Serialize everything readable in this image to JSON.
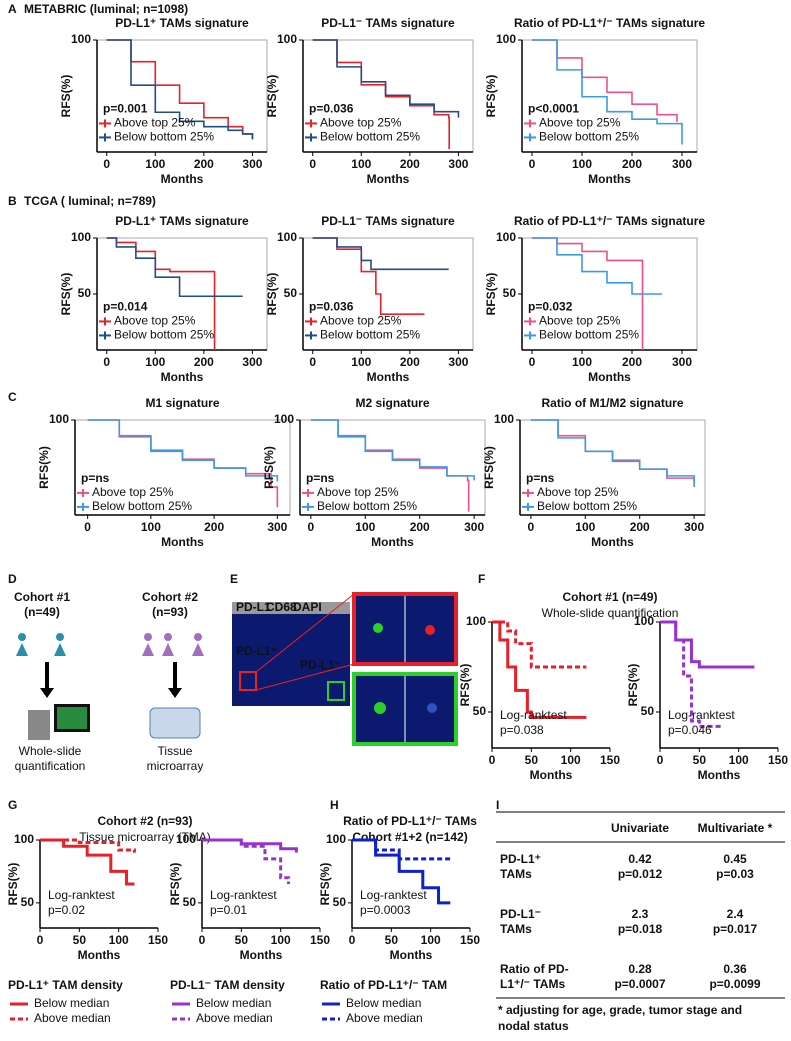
{
  "panel_labels": [
    "A",
    "B",
    "C",
    "D",
    "E",
    "F",
    "G",
    "H",
    "I"
  ],
  "headers": {
    "A": "METABRIC (luminal; n=1098)",
    "B": "TCGA ( luminal; n=789)",
    "F": [
      "Cohort #1 (n=49)",
      "Whole-slide quantification"
    ],
    "G": [
      "Cohort #2 (n=93)",
      "Tissue microarray (TMA)"
    ],
    "H": [
      "Ratio of PD-L1⁺/⁻ TAMs",
      "Cohort #1+2 (n=142)"
    ]
  },
  "chart_data": [
    {
      "type": "line",
      "title": "PD-L1⁺ TAMs signature",
      "title_color": "#e8202a",
      "x_label": "Months",
      "y_label": "RFS(%)",
      "xlim": [
        -20,
        330
      ],
      "xticks": [
        0,
        100,
        200,
        300
      ],
      "ylim": [
        38,
        100
      ],
      "yticks": [
        100
      ],
      "annotations": [
        "p=0.001"
      ],
      "series": [
        {
          "name": "Above top 25%",
          "color": "#e8202a",
          "x": [
            0,
            50,
            100,
            150,
            200,
            250,
            280,
            300
          ],
          "values": [
            100,
            88,
            75,
            65,
            57,
            52,
            48,
            45
          ]
        },
        {
          "name": "Below bottom 25%",
          "color": "#1f4e8c",
          "x": [
            0,
            50,
            100,
            150,
            200,
            250,
            280,
            300
          ],
          "values": [
            100,
            75,
            60,
            55,
            52,
            50,
            48,
            45
          ]
        }
      ]
    },
    {
      "type": "line",
      "title": "PD-L1⁻ TAMs signature",
      "title_color": "#c03ec8",
      "x_label": "Months",
      "y_label": "RFS(%)",
      "xlim": [
        -20,
        330
      ],
      "xticks": [
        0,
        100,
        200,
        300
      ],
      "ylim": [
        25,
        100
      ],
      "yticks": [
        100
      ],
      "annotations": [
        "p=0.036"
      ],
      "series": [
        {
          "name": "Above top 25%",
          "color": "#e8202a",
          "x": [
            0,
            50,
            100,
            150,
            200,
            250,
            280,
            281
          ],
          "values": [
            100,
            85,
            70,
            62,
            56,
            50,
            48,
            27
          ]
        },
        {
          "name": "Below bottom 25%",
          "color": "#1f4e8c",
          "x": [
            0,
            50,
            100,
            150,
            200,
            250,
            300
          ],
          "values": [
            100,
            82,
            72,
            63,
            57,
            52,
            48
          ]
        }
      ]
    },
    {
      "type": "line",
      "title": "Ratio of PD-L1⁺/⁻ TAMs signature",
      "title_color": "#1d2ff0",
      "x_label": "Months",
      "y_label": "RFS(%)",
      "xlim": [
        -20,
        330
      ],
      "xticks": [
        0,
        100,
        200,
        300
      ],
      "ylim": [
        25,
        100
      ],
      "yticks": [
        100
      ],
      "annotations": [
        "p<0.0001"
      ],
      "series": [
        {
          "name": "Above top 25%",
          "color": "#f0508a",
          "x": [
            0,
            50,
            100,
            150,
            200,
            250,
            290
          ],
          "values": [
            100,
            88,
            75,
            65,
            57,
            50,
            45
          ]
        },
        {
          "name": "Below bottom 25%",
          "color": "#3a9be8",
          "x": [
            0,
            50,
            100,
            150,
            200,
            250,
            290,
            300
          ],
          "values": [
            100,
            80,
            62,
            52,
            47,
            44,
            44,
            30
          ]
        }
      ]
    },
    {
      "type": "line",
      "title": "PD-L1⁺ TAMs signature",
      "title_color": "#e8202a",
      "x_label": "Months",
      "y_label": "RFS(%)",
      "xlim": [
        -20,
        330
      ],
      "xticks": [
        0,
        100,
        200,
        300
      ],
      "ylim": [
        0,
        100
      ],
      "yticks": [
        50,
        100
      ],
      "annotations": [
        "p=0.014"
      ],
      "series": [
        {
          "name": "Above top 25%",
          "color": "#e8202a",
          "x": [
            0,
            20,
            60,
            100,
            130,
            220,
            222
          ],
          "values": [
            100,
            96,
            88,
            72,
            70,
            70,
            0
          ]
        },
        {
          "name": "Below bottom 25%",
          "color": "#1f4e8c",
          "x": [
            0,
            20,
            60,
            100,
            150,
            200,
            280
          ],
          "values": [
            100,
            92,
            82,
            65,
            48,
            48,
            48
          ]
        }
      ]
    },
    {
      "type": "line",
      "title": "PD-L1⁻ TAMs signature",
      "title_color": "#c03ec8",
      "x_label": "Months",
      "y_label": "RFS(%)",
      "xlim": [
        -20,
        330
      ],
      "xticks": [
        0,
        100,
        200,
        300
      ],
      "ylim": [
        0,
        100
      ],
      "yticks": [
        50,
        100
      ],
      "annotations": [
        "p=0.036"
      ],
      "series": [
        {
          "name": "Above top 25%",
          "color": "#e8202a",
          "x": [
            0,
            50,
            100,
            130,
            140,
            230
          ],
          "values": [
            100,
            90,
            70,
            50,
            32,
            32
          ]
        },
        {
          "name": "Below bottom 25%",
          "color": "#1f4e8c",
          "x": [
            0,
            50,
            100,
            120,
            200,
            280
          ],
          "values": [
            100,
            92,
            80,
            72,
            72,
            72
          ]
        }
      ]
    },
    {
      "type": "line",
      "title": "Ratio of PD-L1⁺/⁻ TAMs signature",
      "title_color": "#1d2ff0",
      "x_label": "Months",
      "y_label": "RFS(%)",
      "xlim": [
        -20,
        330
      ],
      "xticks": [
        0,
        100,
        200,
        300
      ],
      "ylim": [
        0,
        100
      ],
      "yticks": [
        50,
        100
      ],
      "annotations": [
        "p=0.032"
      ],
      "series": [
        {
          "name": "Above top 25%",
          "color": "#f0508a",
          "x": [
            0,
            50,
            100,
            150,
            200,
            220,
            221
          ],
          "values": [
            100,
            95,
            88,
            80,
            80,
            80,
            0
          ]
        },
        {
          "name": "Below bottom 25%",
          "color": "#3a9be8",
          "x": [
            0,
            50,
            100,
            150,
            200,
            260
          ],
          "values": [
            100,
            85,
            70,
            60,
            50,
            50
          ]
        }
      ]
    },
    {
      "type": "line",
      "title": "M1 signature",
      "title_color": "#111111",
      "x_label": "Months",
      "y_label": "RFS(%)",
      "xlim": [
        -20,
        320
      ],
      "xticks": [
        0,
        100,
        200,
        300
      ],
      "ylim": [
        15,
        100
      ],
      "yticks": [
        100
      ],
      "annotations": [
        "p=ns"
      ],
      "series": [
        {
          "name": "Above top 25%",
          "color": "#f0508a",
          "x": [
            0,
            50,
            100,
            150,
            200,
            250,
            290,
            300
          ],
          "values": [
            100,
            85,
            72,
            65,
            57,
            52,
            40,
            22
          ]
        },
        {
          "name": "Below bottom 25%",
          "color": "#3a9be8",
          "x": [
            0,
            50,
            100,
            150,
            200,
            250,
            300
          ],
          "values": [
            100,
            86,
            73,
            64,
            57,
            50,
            45
          ]
        }
      ]
    },
    {
      "type": "line",
      "title": "M2 signature",
      "title_color": "#111111",
      "x_label": "Months",
      "y_label": "RFS(%)",
      "xlim": [
        -20,
        320
      ],
      "xticks": [
        0,
        100,
        200,
        300
      ],
      "ylim": [
        15,
        100
      ],
      "yticks": [
        100
      ],
      "annotations": [
        "p=ns"
      ],
      "series": [
        {
          "name": "Above top 25%",
          "color": "#f0508a",
          "x": [
            0,
            50,
            100,
            150,
            200,
            250,
            288,
            290
          ],
          "values": [
            100,
            86,
            73,
            65,
            57,
            50,
            46,
            18
          ]
        },
        {
          "name": "Below bottom 25%",
          "color": "#3a9be8",
          "x": [
            0,
            50,
            100,
            150,
            200,
            250,
            300
          ],
          "values": [
            100,
            85,
            72,
            64,
            58,
            50,
            46
          ]
        }
      ]
    },
    {
      "type": "line",
      "title": "Ratio of M1/M2 signature",
      "title_color": "#111111",
      "x_label": "Months",
      "y_label": "RFS(%)",
      "xlim": [
        -20,
        320
      ],
      "xticks": [
        0,
        100,
        200,
        300
      ],
      "ylim": [
        15,
        100
      ],
      "yticks": [
        100
      ],
      "annotations": [
        "p=ns"
      ],
      "series": [
        {
          "name": "Above top 25%",
          "color": "#f0508a",
          "x": [
            0,
            50,
            100,
            150,
            200,
            250,
            300
          ],
          "values": [
            100,
            86,
            72,
            64,
            56,
            48,
            44
          ]
        },
        {
          "name": "Below bottom 25%",
          "color": "#3a9be8",
          "x": [
            0,
            50,
            100,
            150,
            200,
            250,
            300
          ],
          "values": [
            100,
            84,
            72,
            63,
            56,
            50,
            40
          ]
        }
      ]
    },
    {
      "type": "line",
      "x_label": "Months",
      "y_label": "RFS(%)",
      "xlim": [
        0,
        150
      ],
      "xticks": [
        0,
        50,
        100,
        150
      ],
      "ylim": [
        30,
        100
      ],
      "yticks": [
        50,
        100
      ],
      "annotations": [
        "Log-ranktest",
        "p=0.038"
      ],
      "series": [
        {
          "color": "#e8202a",
          "dash": false,
          "x": [
            0,
            10,
            20,
            30,
            45,
            50,
            120
          ],
          "values": [
            100,
            90,
            75,
            62,
            50,
            47,
            47
          ]
        },
        {
          "color": "#e8202a",
          "dash": true,
          "x": [
            0,
            20,
            30,
            50,
            120
          ],
          "values": [
            100,
            95,
            88,
            75,
            75
          ]
        }
      ]
    },
    {
      "type": "line",
      "x_label": "Months",
      "y_label": "RFS(%)",
      "xlim": [
        0,
        150
      ],
      "xticks": [
        0,
        50,
        100,
        150
      ],
      "ylim": [
        30,
        100
      ],
      "yticks": [
        50,
        100
      ],
      "annotations": [
        "Log-ranktest",
        "p=0.046"
      ],
      "series": [
        {
          "color": "#9b30d0",
          "dash": false,
          "x": [
            0,
            20,
            40,
            50,
            120
          ],
          "values": [
            100,
            90,
            78,
            75,
            75
          ]
        },
        {
          "color": "#9b30d0",
          "dash": true,
          "x": [
            0,
            20,
            30,
            40,
            50,
            80
          ],
          "values": [
            100,
            90,
            70,
            45,
            42,
            42
          ]
        }
      ]
    },
    {
      "type": "line",
      "x_label": "Months",
      "y_label": "RFS(%)",
      "xlim": [
        0,
        150
      ],
      "xticks": [
        0,
        50,
        100,
        150
      ],
      "ylim": [
        30,
        100
      ],
      "yticks": [
        50,
        100
      ],
      "annotations": [
        "Log-ranktest",
        "p=0.02"
      ],
      "legend_title": "PD-L1⁺ TAM density",
      "legend_title_color": "#e8202a",
      "series": [
        {
          "name": "Below median",
          "color": "#e8202a",
          "dash": false,
          "x": [
            0,
            30,
            60,
            90,
            110,
            120
          ],
          "values": [
            100,
            95,
            88,
            75,
            65,
            65
          ]
        },
        {
          "name": "Above median",
          "color": "#e8202a",
          "dash": true,
          "x": [
            0,
            50,
            100,
            120
          ],
          "values": [
            100,
            98,
            92,
            90
          ]
        }
      ]
    },
    {
      "type": "line",
      "x_label": "Months",
      "y_label": "RFS(%)",
      "xlim": [
        0,
        150
      ],
      "xticks": [
        0,
        50,
        100,
        150
      ],
      "ylim": [
        30,
        100
      ],
      "yticks": [
        50,
        100
      ],
      "annotations": [
        "Log-ranktest",
        "p=0.01"
      ],
      "legend_title": "PD-L1⁻ TAM density",
      "legend_title_color": "#9b30d0",
      "series": [
        {
          "name": "Below median",
          "color": "#9b30d0",
          "dash": false,
          "x": [
            0,
            50,
            100,
            120
          ],
          "values": [
            100,
            97,
            93,
            90
          ]
        },
        {
          "name": "Above median",
          "color": "#9b30d0",
          "dash": true,
          "x": [
            0,
            50,
            80,
            100,
            110
          ],
          "values": [
            100,
            95,
            85,
            70,
            65
          ]
        }
      ]
    },
    {
      "type": "line",
      "x_label": "Months",
      "y_label": "RFS(%)",
      "xlim": [
        0,
        150
      ],
      "xticks": [
        0,
        50,
        100,
        150
      ],
      "ylim": [
        30,
        100
      ],
      "yticks": [
        50,
        100
      ],
      "annotations": [
        "Log-ranktest",
        "p=0.0003"
      ],
      "legend_title": "Ratio of PD-L1⁺/⁻ TAM",
      "legend_title_color": "#1020d0",
      "series": [
        {
          "name": "Below median",
          "color": "#1020d0",
          "dash": false,
          "x": [
            0,
            30,
            60,
            90,
            110,
            125
          ],
          "values": [
            100,
            88,
            75,
            62,
            50,
            50
          ]
        },
        {
          "name": "Above median",
          "color": "#1020d0",
          "dash": true,
          "x": [
            0,
            30,
            60,
            125
          ],
          "values": [
            100,
            92,
            85,
            85
          ]
        }
      ]
    }
  ],
  "diagram": {
    "cohort1": [
      "Cohort #1",
      "(n=49)"
    ],
    "cohort2": [
      "Cohort #2",
      "(n=93)"
    ],
    "method1": [
      "Whole-slide",
      "quantification"
    ],
    "method2": [
      "Tissue",
      "microarray"
    ]
  },
  "micrograph": {
    "stains": [
      "PD-L1",
      "CD68",
      "DAPI"
    ],
    "pos_label": "PD-L1⁺",
    "neg_label": "PD-L1⁻"
  },
  "table": {
    "header": [
      "Univariate",
      "Multivariate *"
    ],
    "rows": [
      {
        "label": [
          "PD-L1⁺",
          "TAMs"
        ],
        "univariate": [
          "0.42",
          "p=0.012"
        ],
        "multivariate": [
          "0.45",
          "p=0.03"
        ]
      },
      {
        "label": [
          "PD-L1⁻",
          "TAMs"
        ],
        "univariate": [
          "2.3",
          "p=0.018"
        ],
        "multivariate": [
          "2.4",
          "p=0.017"
        ]
      },
      {
        "label": [
          "Ratio of PD-",
          "L1⁺/⁻ TAMs"
        ],
        "univariate": [
          "0.28",
          "p=0.0007"
        ],
        "multivariate": [
          "0.36",
          "p=0.0099"
        ]
      }
    ],
    "footnote": [
      "* adjusting for age, grade, tumor stage and",
      "nodal status"
    ]
  }
}
